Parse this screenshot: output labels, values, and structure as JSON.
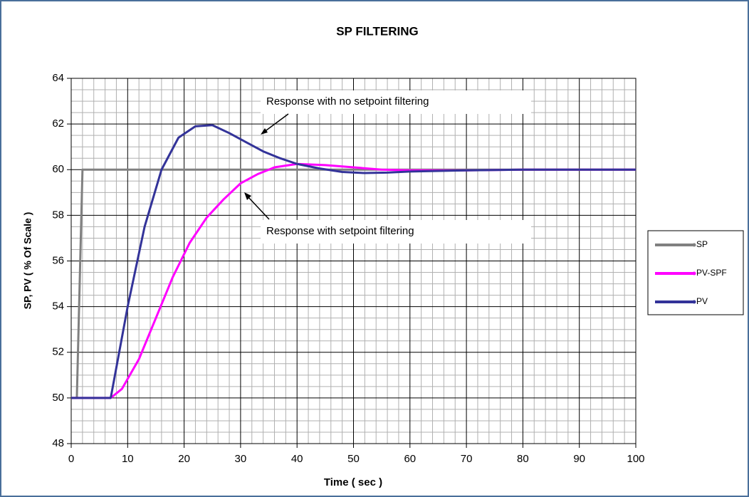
{
  "chart_data": {
    "type": "line",
    "title": "SP FILTERING",
    "x_label": "Time ( sec )",
    "y_label": "SP, PV ( % Of Scale )",
    "xlim": [
      0,
      100
    ],
    "xticks": [
      0,
      10,
      20,
      30,
      40,
      50,
      60,
      70,
      80,
      90,
      100
    ],
    "ylim": [
      48,
      64
    ],
    "yticks": [
      48,
      50,
      52,
      54,
      56,
      58,
      60,
      62,
      64
    ],
    "grid": true,
    "minor_divisions": {
      "x": 5,
      "y": 4
    },
    "legend": "right",
    "annotations": [
      "Response with no setpoint filtering",
      "Response with setpoint filtering"
    ],
    "series": [
      {
        "name": "SP",
        "color": "#808080",
        "x": [
          0,
          1,
          2,
          100
        ],
        "values": [
          50,
          50,
          60,
          60
        ]
      },
      {
        "name": "PV-SPF",
        "color": "#ff00ff",
        "x": [
          0,
          7,
          9,
          12,
          15,
          18,
          21,
          24,
          27,
          30,
          33,
          36,
          40,
          45,
          50,
          55,
          60,
          70,
          80,
          100
        ],
        "values": [
          50,
          50,
          50.4,
          51.7,
          53.5,
          55.3,
          56.8,
          57.9,
          58.7,
          59.4,
          59.8,
          60.1,
          60.25,
          60.2,
          60.1,
          60,
          59.97,
          59.97,
          60,
          60
        ]
      },
      {
        "name": "PV",
        "color": "#333399",
        "x": [
          0,
          7,
          10,
          13,
          16,
          19,
          22,
          25,
          28,
          31,
          34,
          37,
          40,
          44,
          48,
          52,
          56,
          60,
          70,
          80,
          100
        ],
        "values": [
          50,
          50,
          54,
          57.5,
          60,
          61.4,
          61.9,
          61.95,
          61.6,
          61.2,
          60.8,
          60.5,
          60.25,
          60.05,
          59.9,
          59.85,
          59.87,
          59.92,
          59.97,
          60,
          60
        ]
      }
    ]
  }
}
